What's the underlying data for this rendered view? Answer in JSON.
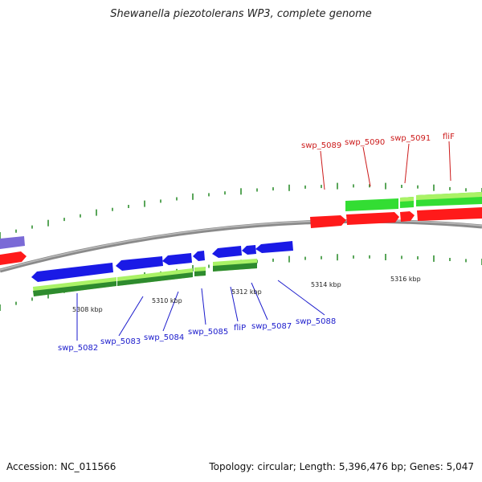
{
  "title": "Shewanella piezotolerans WP3, complete genome",
  "footer": {
    "accession": "Accession: NC_011566",
    "stats": "Topology: circular; Length: 5,396,476 bp; Genes: 5,047"
  },
  "colors": {
    "backbone": "#8a8a8a",
    "forward_gene": "#ff1a1a",
    "reverse_gene": "#1a1ae6",
    "forward_cds": "#33dd33",
    "reverse_cds": "#99ee22",
    "partial_gene": "#7a6ad6",
    "tick": "#228822",
    "label_reverse": "#1a1acc",
    "label_forward": "#cc1a1a"
  },
  "kbp_labels": [
    {
      "id": "kbp-5308",
      "text": "5308 kbp"
    },
    {
      "id": "kbp-5310",
      "text": "5310 kbp"
    },
    {
      "id": "kbp-5312",
      "text": "5312 kbp"
    },
    {
      "id": "kbp-5314",
      "text": "5314 kbp"
    },
    {
      "id": "kbp-5316",
      "text": "5316 kbp"
    }
  ],
  "gene_labels": [
    {
      "id": "swp_5082",
      "text": "swp_5082",
      "strand": "reverse"
    },
    {
      "id": "swp_5083",
      "text": "swp_5083",
      "strand": "reverse"
    },
    {
      "id": "swp_5084",
      "text": "swp_5084",
      "strand": "reverse"
    },
    {
      "id": "swp_5085",
      "text": "swp_5085",
      "strand": "reverse"
    },
    {
      "id": "fliP",
      "text": "fliP",
      "strand": "reverse"
    },
    {
      "id": "swp_5087",
      "text": "swp_5087",
      "strand": "reverse"
    },
    {
      "id": "swp_5088",
      "text": "swp_5088",
      "strand": "reverse"
    },
    {
      "id": "swp_5089",
      "text": "swp_5089",
      "strand": "forward"
    },
    {
      "id": "swp_5090",
      "text": "swp_5090",
      "strand": "forward"
    },
    {
      "id": "swp_5091",
      "text": "swp_5091",
      "strand": "forward"
    },
    {
      "id": "fliF",
      "text": "fliF",
      "strand": "forward"
    }
  ]
}
